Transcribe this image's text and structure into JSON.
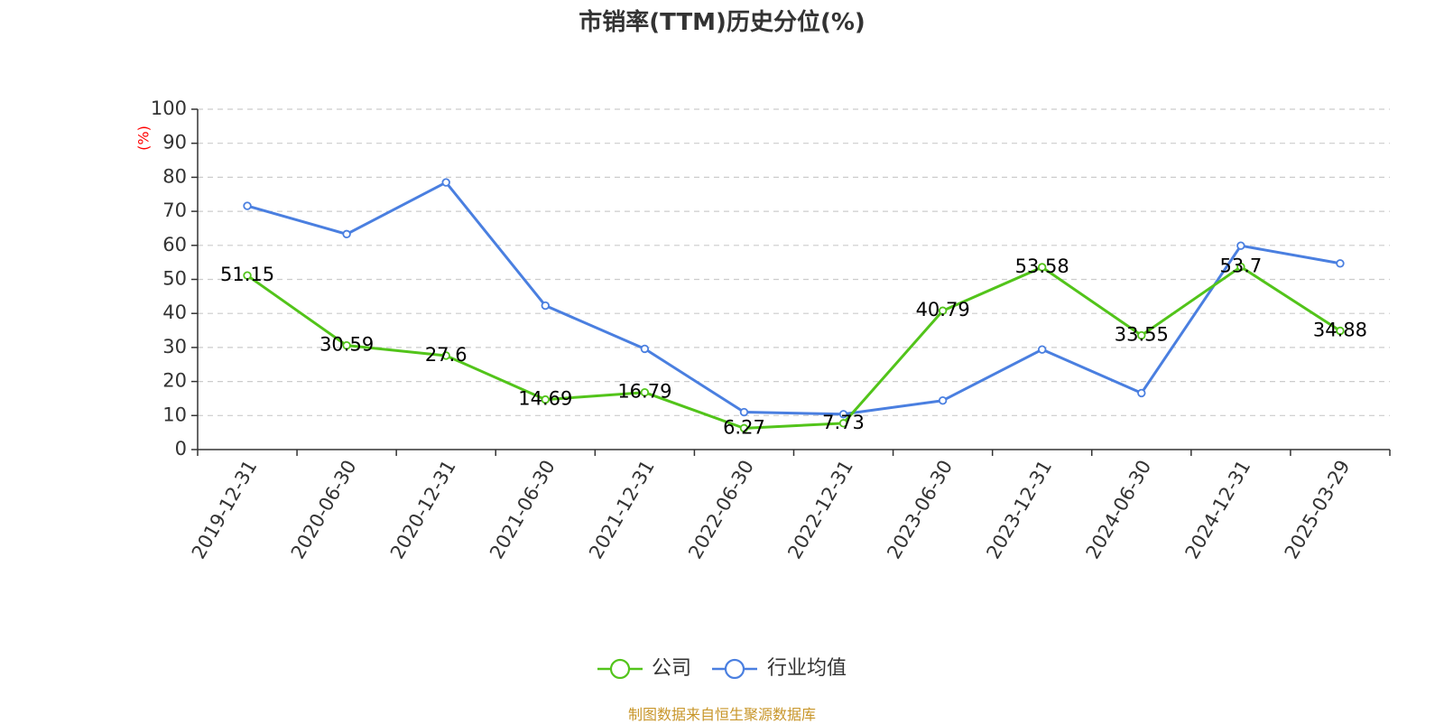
{
  "title": "市销率(TTM)历史分位(%)",
  "source_note": "制图数据来自恒生聚源数据库",
  "chart_data": {
    "type": "line",
    "title": "市销率(TTM)历史分位(%)",
    "ylabel": "(%)",
    "xlabel": "",
    "ylim": [
      0,
      100
    ],
    "y_ticks": [
      0,
      10,
      20,
      30,
      40,
      50,
      60,
      70,
      80,
      90,
      100
    ],
    "grid": true,
    "legend_position": "bottom",
    "categories": [
      "2019-12-31",
      "2020-06-30",
      "2020-12-31",
      "2021-06-30",
      "2021-12-31",
      "2022-06-30",
      "2022-12-31",
      "2023-06-30",
      "2023-12-31",
      "2024-06-30",
      "2024-12-31",
      "2025-03-29"
    ],
    "series": [
      {
        "name": "公司",
        "color": "#52c41a",
        "values": [
          51.15,
          30.59,
          27.6,
          14.69,
          16.79,
          6.27,
          7.73,
          40.79,
          53.58,
          33.55,
          53.7,
          34.88
        ],
        "labels": [
          "51.15",
          "30.59",
          "27.6",
          "14.69",
          "16.79",
          "6.27",
          "7.73",
          "40.79",
          "53.58",
          "33.55",
          "53.7",
          "34.88"
        ]
      },
      {
        "name": "行业均值",
        "color": "#4a7fe0",
        "values": [
          71.6,
          63.3,
          78.5,
          42.3,
          29.6,
          11.0,
          10.4,
          14.4,
          29.4,
          16.6,
          59.9,
          54.7
        ]
      }
    ]
  }
}
